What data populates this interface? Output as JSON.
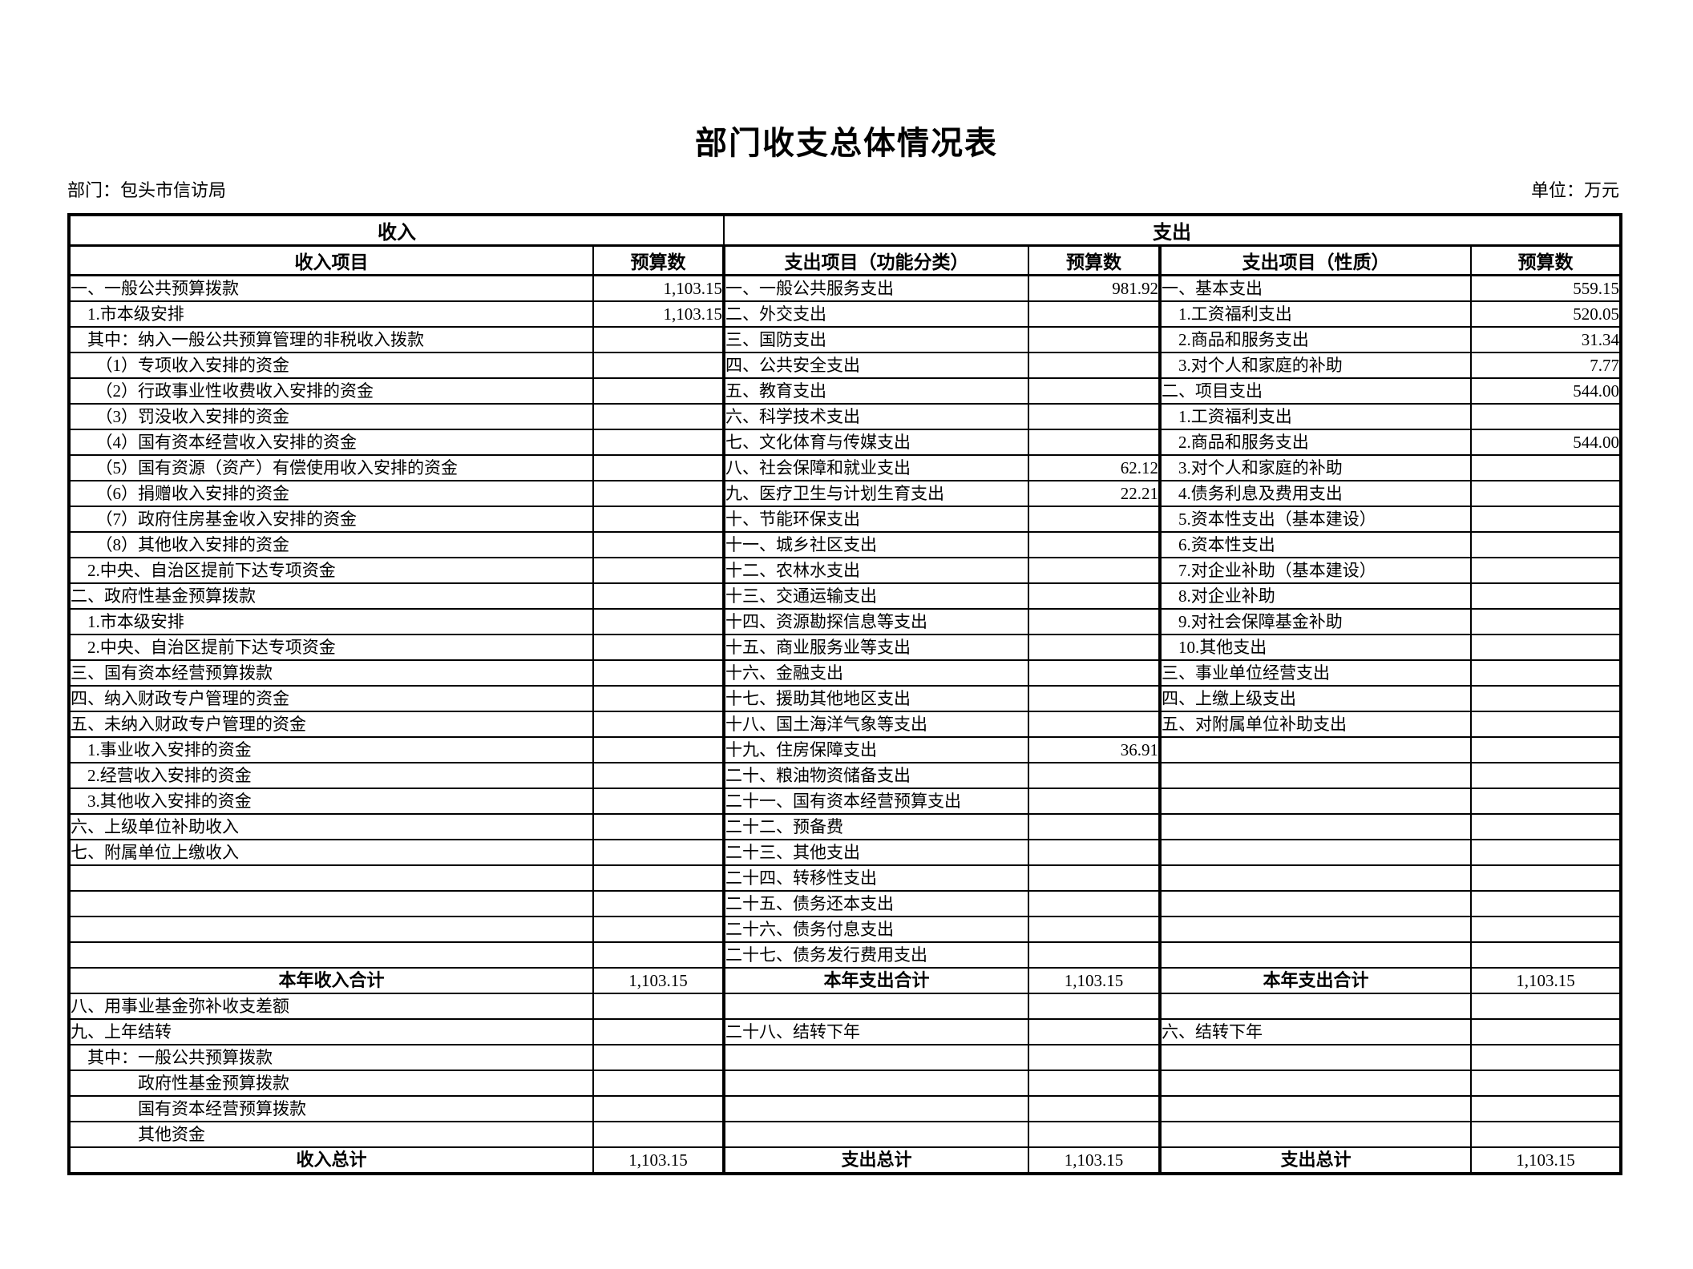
{
  "page": {
    "title": "部门收支总体情况表",
    "department": "部门：包头市信访局",
    "unit": "单位：万元"
  },
  "table": {
    "group_headers": {
      "income": "收入",
      "expenditure": "支出"
    },
    "column_headers": [
      "收入项目",
      "预算数",
      "支出项目（功能分类）",
      "预算数",
      "支出项目（性质）",
      "预算数"
    ],
    "rows": [
      {
        "type": "data",
        "cells": [
          "一、一般公共预算拨款",
          "1,103.15",
          "一、一般公共服务支出",
          "981.92",
          "一、基本支出",
          "559.15"
        ]
      },
      {
        "type": "data",
        "cells": [
          "　1.市本级安排",
          "1,103.15",
          "二、外交支出",
          "",
          "　1.工资福利支出",
          "520.05"
        ]
      },
      {
        "type": "data",
        "cells": [
          "　其中：纳入一般公共预算管理的非税收入拨款",
          "",
          "三、国防支出",
          "",
          "　2.商品和服务支出",
          "31.34"
        ]
      },
      {
        "type": "data",
        "cells": [
          "　　（1）专项收入安排的资金",
          "",
          "四、公共安全支出",
          "",
          "　3.对个人和家庭的补助",
          "7.77"
        ]
      },
      {
        "type": "data",
        "cells": [
          "　　（2）行政事业性收费收入安排的资金",
          "",
          "五、教育支出",
          "",
          "二、项目支出",
          "544.00"
        ]
      },
      {
        "type": "data",
        "cells": [
          "　　（3）罚没收入安排的资金",
          "",
          "六、科学技术支出",
          "",
          "　1.工资福利支出",
          ""
        ]
      },
      {
        "type": "data",
        "cells": [
          "　　（4）国有资本经营收入安排的资金",
          "",
          "七、文化体育与传媒支出",
          "",
          "　2.商品和服务支出",
          "544.00"
        ]
      },
      {
        "type": "data",
        "cells": [
          "　　（5）国有资源（资产）有偿使用收入安排的资金",
          "",
          "八、社会保障和就业支出",
          "62.12",
          "　3.对个人和家庭的补助",
          ""
        ]
      },
      {
        "type": "data",
        "cells": [
          "　　（6）捐赠收入安排的资金",
          "",
          "九、医疗卫生与计划生育支出",
          "22.21",
          "　4.债务利息及费用支出",
          ""
        ]
      },
      {
        "type": "data",
        "cells": [
          "　　（7）政府住房基金收入安排的资金",
          "",
          "十、节能环保支出",
          "",
          "　5.资本性支出（基本建设）",
          ""
        ]
      },
      {
        "type": "data",
        "cells": [
          "　　（8）其他收入安排的资金",
          "",
          "十一、城乡社区支出",
          "",
          "　6.资本性支出",
          ""
        ]
      },
      {
        "type": "data",
        "cells": [
          "　2.中央、自治区提前下达专项资金",
          "",
          "十二、农林水支出",
          "",
          "　7.对企业补助（基本建设）",
          ""
        ]
      },
      {
        "type": "data",
        "cells": [
          "二、政府性基金预算拨款",
          "",
          "十三、交通运输支出",
          "",
          "　8.对企业补助",
          ""
        ]
      },
      {
        "type": "data",
        "cells": [
          "　1.市本级安排",
          "",
          "十四、资源勘探信息等支出",
          "",
          "　9.对社会保障基金补助",
          ""
        ]
      },
      {
        "type": "data",
        "cells": [
          "　2.中央、自治区提前下达专项资金",
          "",
          "十五、商业服务业等支出",
          "",
          "　10.其他支出",
          ""
        ]
      },
      {
        "type": "data",
        "cells": [
          "三、国有资本经营预算拨款",
          "",
          "十六、金融支出",
          "",
          "三、事业单位经营支出",
          ""
        ]
      },
      {
        "type": "data",
        "cells": [
          "四、纳入财政专户管理的资金",
          "",
          "十七、援助其他地区支出",
          "",
          "四、上缴上级支出",
          ""
        ]
      },
      {
        "type": "data",
        "cells": [
          "五、未纳入财政专户管理的资金",
          "",
          "十八、国土海洋气象等支出",
          "",
          "五、对附属单位补助支出",
          ""
        ]
      },
      {
        "type": "data",
        "cells": [
          "　1.事业收入安排的资金",
          "",
          "十九、住房保障支出",
          "36.91",
          "",
          ""
        ]
      },
      {
        "type": "data",
        "cells": [
          "　2.经营收入安排的资金",
          "",
          "二十、粮油物资储备支出",
          "",
          "",
          ""
        ]
      },
      {
        "type": "data",
        "cells": [
          "　3.其他收入安排的资金",
          "",
          "二十一、国有资本经营预算支出",
          "",
          "",
          ""
        ]
      },
      {
        "type": "data",
        "cells": [
          "六、上级单位补助收入",
          "",
          "二十二、预备费",
          "",
          "",
          ""
        ]
      },
      {
        "type": "data",
        "cells": [
          "七、附属单位上缴收入",
          "",
          "二十三、其他支出",
          "",
          "",
          ""
        ]
      },
      {
        "type": "data",
        "cells": [
          "",
          "",
          "二十四、转移性支出",
          "",
          "",
          ""
        ]
      },
      {
        "type": "data",
        "cells": [
          "",
          "",
          "二十五、债务还本支出",
          "",
          "",
          ""
        ]
      },
      {
        "type": "data",
        "cells": [
          "",
          "",
          "二十六、债务付息支出",
          "",
          "",
          ""
        ]
      },
      {
        "type": "data",
        "cells": [
          "",
          "",
          "二十七、债务发行费用支出",
          "",
          "",
          ""
        ]
      },
      {
        "type": "total",
        "cells": [
          "本年收入合计",
          "1,103.15",
          "本年支出合计",
          "1,103.15",
          "本年支出合计",
          "1,103.15"
        ]
      },
      {
        "type": "data",
        "cells": [
          "八、用事业基金弥补收支差额",
          "",
          "",
          "",
          "",
          ""
        ]
      },
      {
        "type": "data",
        "cells": [
          "九、上年结转",
          "",
          "二十八、结转下年",
          "",
          "六、结转下年",
          ""
        ]
      },
      {
        "type": "data",
        "cells": [
          "　其中：一般公共预算拨款",
          "",
          "",
          "",
          "",
          ""
        ]
      },
      {
        "type": "data",
        "cells": [
          "　　　　政府性基金预算拨款",
          "",
          "",
          "",
          "",
          ""
        ]
      },
      {
        "type": "data",
        "cells": [
          "　　　　国有资本经营预算拨款",
          "",
          "",
          "",
          "",
          ""
        ]
      },
      {
        "type": "data",
        "cells": [
          "　　　　其他资金",
          "",
          "",
          "",
          "",
          ""
        ]
      },
      {
        "type": "total",
        "cells": [
          "收入总计",
          "1,103.15",
          "支出总计",
          "1,103.15",
          "支出总计",
          "1,103.15"
        ]
      }
    ]
  }
}
